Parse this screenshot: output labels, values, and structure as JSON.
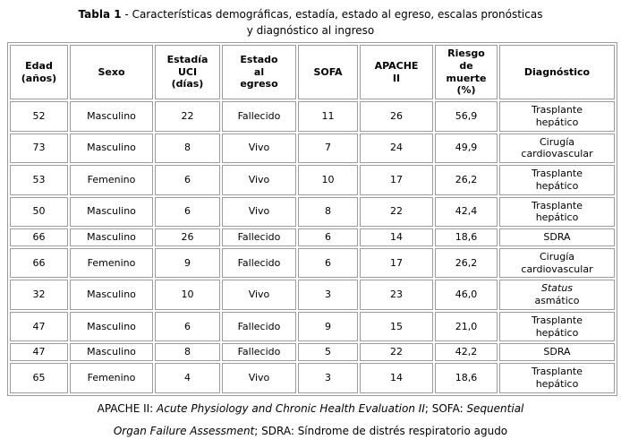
{
  "title": {
    "segments": [
      {
        "t": "Tabla 1",
        "b": true
      },
      {
        "t": " - Características demográficas, estadía, estado al egreso, escalas pronósticas\ny diagnóstico al ingreso"
      }
    ]
  },
  "table": {
    "headers": [
      "Edad\n(años)",
      "Sexo",
      "Estadía\nUCI\n(días)",
      "Estado\nal\negreso",
      "SOFA",
      "APACHE\nII",
      "Riesgo\nde\nmuerte\n(%)",
      "Diagnóstico"
    ],
    "column_keys": [
      "edad",
      "sexo",
      "estadia-uci",
      "estado-egreso",
      "sofa",
      "apache-ii",
      "riesgo-muerte",
      "diagnostico"
    ],
    "rows": [
      [
        "52",
        "Masculino",
        "22",
        "Fallecido",
        "11",
        "26",
        "56,9",
        [
          {
            "t": "Trasplante\nhepático"
          }
        ]
      ],
      [
        "73",
        "Masculino",
        "8",
        "Vivo",
        "7",
        "24",
        "49,9",
        [
          {
            "t": "Cirugía\ncardiovascular"
          }
        ]
      ],
      [
        "53",
        "Femenino",
        "6",
        "Vivo",
        "10",
        "17",
        "26,2",
        [
          {
            "t": "Trasplante\nhepático"
          }
        ]
      ],
      [
        "50",
        "Masculino",
        "6",
        "Vivo",
        "8",
        "22",
        "42,4",
        [
          {
            "t": "Trasplante\nhepático"
          }
        ]
      ],
      [
        "66",
        "Masculino",
        "26",
        "Fallecido",
        "6",
        "14",
        "18,6",
        [
          {
            "t": "SDRA"
          }
        ]
      ],
      [
        "66",
        "Femenino",
        "9",
        "Fallecido",
        "6",
        "17",
        "26,2",
        [
          {
            "t": "Cirugía\ncardiovascular"
          }
        ]
      ],
      [
        "32",
        "Masculino",
        "10",
        "Vivo",
        "3",
        "23",
        "46,0",
        [
          {
            "t": "Status",
            "i": true
          },
          {
            "t": "\nasmático"
          }
        ]
      ],
      [
        "47",
        "Masculino",
        "6",
        "Fallecido",
        "9",
        "15",
        "21,0",
        [
          {
            "t": "Trasplante\nhepático"
          }
        ]
      ],
      [
        "47",
        "Masculino",
        "8",
        "Fallecido",
        "5",
        "22",
        "42,2",
        [
          {
            "t": "SDRA"
          }
        ]
      ],
      [
        "65",
        "Femenino",
        "4",
        "Vivo",
        "3",
        "14",
        "18,6",
        [
          {
            "t": "Trasplante\nhepático"
          }
        ]
      ]
    ]
  },
  "footnote": {
    "segments": [
      {
        "t": "APACHE II: "
      },
      {
        "t": "Acute Physiology and Chronic Health Evaluation II",
        "i": true
      },
      {
        "t": "; SOFA: "
      },
      {
        "t": "Sequential",
        "i": true
      },
      {
        "t": "\n"
      },
      {
        "t": "Organ Failure Assessment",
        "i": true
      },
      {
        "t": "; SDRA: Síndrome de distrés respiratorio agudo"
      }
    ]
  }
}
